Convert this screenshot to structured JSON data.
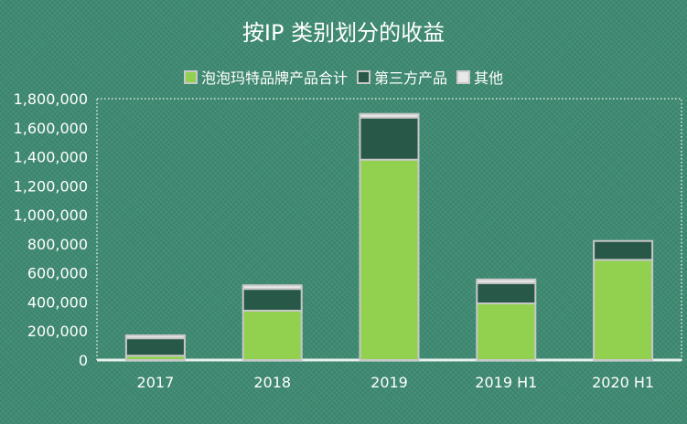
{
  "chart_data": {
    "type": "bar",
    "stacked": true,
    "title": "按IP 类别划分的收益",
    "categories": [
      "2017",
      "2018",
      "2019",
      "2019 H1",
      "2020 H1"
    ],
    "series": [
      {
        "name": "泡泡玛特品牌产品合计",
        "color": "#92d050",
        "values": [
          30000,
          340000,
          1380000,
          390000,
          690000
        ]
      },
      {
        "name": "第三方产品",
        "color": "#285848",
        "values": [
          120000,
          150000,
          290000,
          140000,
          130000
        ]
      },
      {
        "name": "其他",
        "color": "#e8e8e8",
        "values": [
          20000,
          25000,
          25000,
          25000,
          0
        ]
      }
    ],
    "ylim": [
      0,
      1800000
    ],
    "yticks": [
      "0",
      "200,000",
      "400,000",
      "600,000",
      "800,000",
      "1,000,000",
      "1,200,000",
      "1,400,000",
      "1,600,000",
      "1,800,000"
    ],
    "xlabel": "",
    "ylabel": "",
    "grid": false,
    "legend_position": "top"
  }
}
